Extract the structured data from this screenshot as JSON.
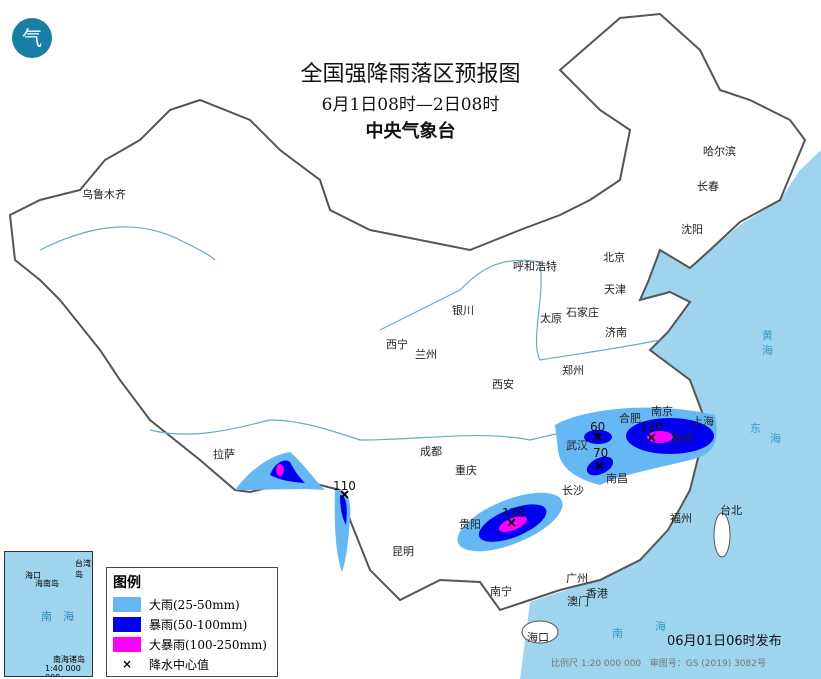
{
  "header": {
    "title": "全国强降雨落区预报图",
    "period": "6月1日08时—2日08时",
    "issuer": "中央气象台"
  },
  "logo": {
    "icon": "cma-logo",
    "glyph": "气"
  },
  "colors": {
    "heavy_rain": "#66b8f5",
    "rainstorm": "#0000ee",
    "heavy_rainstorm": "#ff00ff",
    "sea": "#9fd4ef"
  },
  "cities": [
    "乌鲁木齐",
    "哈尔滨",
    "长春",
    "沈阳",
    "北京",
    "天津",
    "呼和浩特",
    "石家庄",
    "太原",
    "济南",
    "银川",
    "西宁",
    "兰州",
    "西安",
    "郑州",
    "合肥",
    "南京",
    "上海",
    "杭州",
    "武汉",
    "南昌",
    "长沙",
    "成都",
    "重庆",
    "贵阳",
    "昆明",
    "拉萨",
    "南宁",
    "广州",
    "香港",
    "澳门",
    "福州",
    "台北",
    "海口"
  ],
  "rain_centers": [
    {
      "value": "60"
    },
    {
      "value": "70"
    },
    {
      "value": "120"
    },
    {
      "value": "130"
    },
    {
      "value": "110"
    }
  ],
  "legend": {
    "title": "图例",
    "items": [
      {
        "label": "大雨(25-50mm)"
      },
      {
        "label": "暴雨(50-100mm)"
      },
      {
        "label": "大暴雨(100-250mm)"
      },
      {
        "label": "降水中心值",
        "symbol": "×"
      }
    ]
  },
  "inset": {
    "labels": [
      "海口",
      "海南岛",
      "台湾岛",
      "南",
      "海",
      "南海诸岛"
    ],
    "scale": "1:40 000 000"
  },
  "sea_labels": [
    "南",
    "海",
    "黄",
    "海",
    "东",
    "海"
  ],
  "footer": {
    "published": "06月01日06时发布",
    "scale": "比例尺 1:20 000 000",
    "approval": "审图号：GS (2019) 3082号"
  }
}
